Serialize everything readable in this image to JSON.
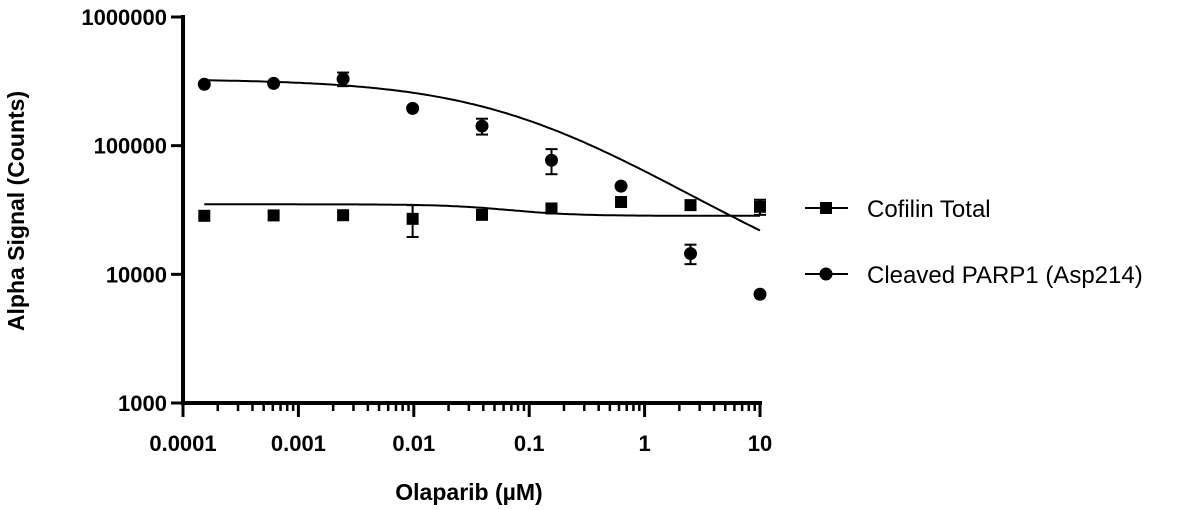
{
  "chart_data": {
    "type": "scatter",
    "title": "",
    "xlabel": "Olaparib (µM)",
    "ylabel": "Alpha Signal (Counts)",
    "xscale": "log",
    "yscale": "log",
    "xlim": [
      0.0001,
      10
    ],
    "ylim": [
      1000,
      1000000
    ],
    "x_ticks": [
      0.0001,
      0.001,
      0.01,
      0.1,
      1,
      10
    ],
    "x_tick_labels": [
      "0.0001",
      "0.001",
      "0.01",
      "0.1",
      "1",
      "10"
    ],
    "y_ticks": [
      1000,
      10000,
      100000,
      1000000
    ],
    "y_tick_labels": [
      "1000",
      "10000",
      "100000",
      "1000000"
    ],
    "grid": false,
    "legend_position": "right",
    "series": [
      {
        "name": "Cofilin Total",
        "marker": "square",
        "x": [
          0.000153,
          0.00061,
          0.00244,
          0.00977,
          0.039,
          0.156,
          0.625,
          2.5,
          10
        ],
        "y": [
          28500,
          28700,
          28800,
          27000,
          29000,
          32500,
          36500,
          34500,
          33500
        ],
        "err": [
          0,
          0,
          0,
          7500,
          0,
          1500,
          1500,
          0,
          4500
        ],
        "fit": {
          "bottom": 28500,
          "top": 35000,
          "logEC50": -1.2,
          "hill": 1.5
        }
      },
      {
        "name": "Cleaved PARP1 (Asp214)",
        "marker": "circle",
        "x": [
          0.000153,
          0.00061,
          0.00244,
          0.00977,
          0.039,
          0.156,
          0.625,
          2.5,
          10
        ],
        "y": [
          300000,
          305000,
          330000,
          195000,
          142000,
          77000,
          48500,
          14500,
          7000
        ],
        "err": [
          0,
          0,
          40000,
          0,
          20000,
          17000,
          0,
          2500,
          0
        ],
        "fit": {
          "bottom": 5000,
          "top": 330000,
          "logEC50": -1.1,
          "hill": 0.6
        }
      }
    ]
  }
}
